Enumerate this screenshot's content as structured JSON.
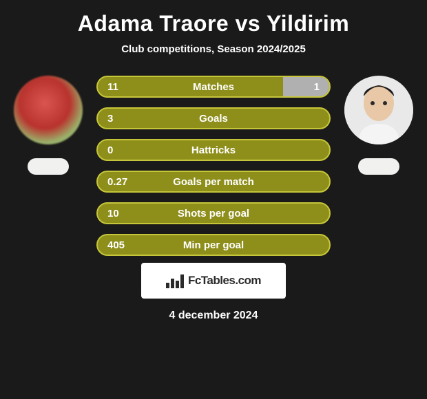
{
  "background_color": "#1a1a1a",
  "text_color": "#ffffff",
  "title": "Adama Traore vs Yildirim",
  "subtitle": "Club competitions, Season 2024/2025",
  "player_left": {
    "name": "Adama Traore"
  },
  "player_right": {
    "name": "Yildirim"
  },
  "stats_style": {
    "bar_bg": "#8e8e1b",
    "bar_border": "#c6c63a",
    "fill_alt": "#b0b0b0",
    "font_size": 15
  },
  "stats": [
    {
      "label": "Matches",
      "left_val": "11",
      "right_val": "1",
      "left_pct": 80,
      "right_pct": 20,
      "right_fill": "#b0b0b0"
    },
    {
      "label": "Goals",
      "left_val": "3",
      "right_val": "",
      "left_pct": 100,
      "right_pct": 0
    },
    {
      "label": "Hattricks",
      "left_val": "0",
      "right_val": "",
      "left_pct": 100,
      "right_pct": 0
    },
    {
      "label": "Goals per match",
      "left_val": "0.27",
      "right_val": "",
      "left_pct": 100,
      "right_pct": 0
    },
    {
      "label": "Shots per goal",
      "left_val": "10",
      "right_val": "",
      "left_pct": 100,
      "right_pct": 0
    },
    {
      "label": "Min per goal",
      "left_val": "405",
      "right_val": "",
      "left_pct": 100,
      "right_pct": 0
    }
  ],
  "brand": {
    "text": "FcTables.com"
  },
  "date": "4 december 2024"
}
